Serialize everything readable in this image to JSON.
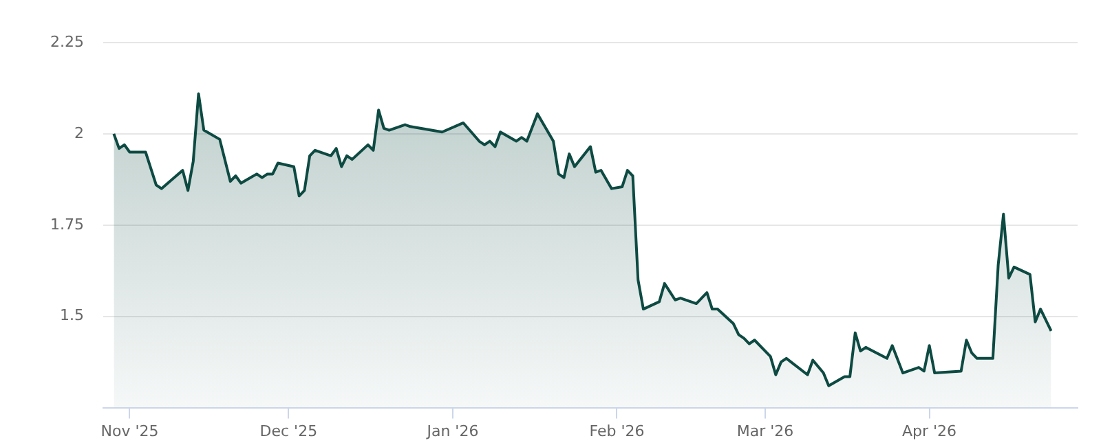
{
  "chart_data": {
    "type": "area",
    "x": [
      "2025-10-29",
      "2025-10-30",
      "2025-10-31",
      "2025-11-01",
      "2025-11-04",
      "2025-11-06",
      "2025-11-07",
      "2025-11-11",
      "2025-11-12",
      "2025-11-13",
      "2025-11-14",
      "2025-11-15",
      "2025-11-18",
      "2025-11-20",
      "2025-11-21",
      "2025-11-22",
      "2025-11-25",
      "2025-11-26",
      "2025-11-27",
      "2025-11-28",
      "2025-11-29",
      "2025-12-02",
      "2025-12-03",
      "2025-12-04",
      "2025-12-05",
      "2025-12-06",
      "2025-12-09",
      "2025-12-10",
      "2025-12-11",
      "2025-12-12",
      "2025-12-13",
      "2025-12-16",
      "2025-12-17",
      "2025-12-18",
      "2025-12-19",
      "2025-12-20",
      "2025-12-23",
      "2025-12-24",
      "2025-12-30",
      "2026-01-03",
      "2026-01-06",
      "2026-01-07",
      "2026-01-08",
      "2026-01-09",
      "2026-01-10",
      "2026-01-13",
      "2026-01-14",
      "2026-01-15",
      "2026-01-17",
      "2026-01-20",
      "2026-01-21",
      "2026-01-22",
      "2026-01-23",
      "2026-01-24",
      "2026-01-27",
      "2026-01-28",
      "2026-01-29",
      "2026-01-31",
      "2026-02-02",
      "2026-02-03",
      "2026-02-04",
      "2026-02-05",
      "2026-02-06",
      "2026-02-09",
      "2026-02-10",
      "2026-02-12",
      "2026-02-13",
      "2026-02-16",
      "2026-02-18",
      "2026-02-19",
      "2026-02-20",
      "2026-02-23",
      "2026-02-24",
      "2026-02-25",
      "2026-02-26",
      "2026-02-27",
      "2026-03-02",
      "2026-03-03",
      "2026-03-04",
      "2026-03-05",
      "2026-03-09",
      "2026-03-10",
      "2026-03-12",
      "2026-03-13",
      "2026-03-16",
      "2026-03-17",
      "2026-03-18",
      "2026-03-19",
      "2026-03-20",
      "2026-03-24",
      "2026-03-25",
      "2026-03-27",
      "2026-03-30",
      "2026-03-31",
      "2026-04-01",
      "2026-04-02",
      "2026-04-07",
      "2026-04-08",
      "2026-04-09",
      "2026-04-10",
      "2026-04-13",
      "2026-04-14",
      "2026-04-15",
      "2026-04-16",
      "2026-04-17",
      "2026-04-20",
      "2026-04-21",
      "2026-04-22",
      "2026-04-24"
    ],
    "series": [
      {
        "color": "#0d4a42",
        "values": [
          2.0,
          1.96,
          1.97,
          1.95,
          1.95,
          1.86,
          1.85,
          1.9,
          1.845,
          1.925,
          2.11,
          2.01,
          1.985,
          1.87,
          1.885,
          1.865,
          1.89,
          1.88,
          1.89,
          1.89,
          1.92,
          1.91,
          1.83,
          1.845,
          1.94,
          1.955,
          1.94,
          1.96,
          1.91,
          1.94,
          1.93,
          1.97,
          1.955,
          2.065,
          2.015,
          2.01,
          2.025,
          2.02,
          2.005,
          2.03,
          1.98,
          1.97,
          1.98,
          1.965,
          2.005,
          1.98,
          1.99,
          1.98,
          2.055,
          1.98,
          1.89,
          1.88,
          1.945,
          1.91,
          1.965,
          1.895,
          1.9,
          1.85,
          1.855,
          1.9,
          1.885,
          1.6,
          1.52,
          1.54,
          1.59,
          1.545,
          1.55,
          1.535,
          1.565,
          1.52,
          1.52,
          1.48,
          1.45,
          1.44,
          1.425,
          1.435,
          1.39,
          1.34,
          1.375,
          1.385,
          1.34,
          1.38,
          1.345,
          1.31,
          1.335,
          1.335,
          1.455,
          1.405,
          1.415,
          1.385,
          1.42,
          1.345,
          1.36,
          1.35,
          1.42,
          1.345,
          1.35,
          1.435,
          1.4,
          1.385,
          1.385,
          1.64,
          1.78,
          1.605,
          1.635,
          1.615,
          1.485,
          1.52,
          1.46
        ]
      }
    ],
    "xlim": [
      "2025-10-27",
      "2026-04-29"
    ],
    "xticks": [
      {
        "value": "2025-11-01",
        "label": "Nov '25"
      },
      {
        "value": "2025-12-01",
        "label": "Dec '25"
      },
      {
        "value": "2026-01-01",
        "label": "Jan '26"
      },
      {
        "value": "2026-02-01",
        "label": "Feb '26"
      },
      {
        "value": "2026-03-01",
        "label": "Mar '26"
      },
      {
        "value": "2026-04-01",
        "label": "Apr '26"
      }
    ],
    "ylim": [
      1.25,
      2.25
    ],
    "yticks": [
      1.5,
      1.75,
      2,
      2.25
    ],
    "grid": "y",
    "legend": false,
    "marker": "none",
    "line_style": "solid"
  }
}
